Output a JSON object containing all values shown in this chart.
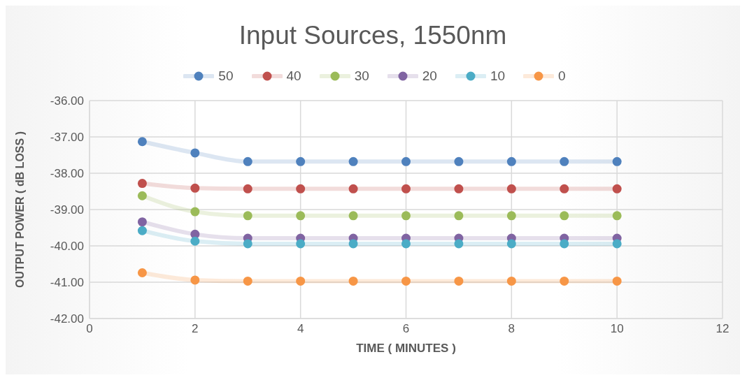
{
  "chart_data": {
    "type": "line",
    "title": "Input Sources, 1550nm",
    "xlabel": "TIME ( MINUTES )",
    "ylabel": "OUTPUT POWER ( dB LOSS )",
    "x": [
      1,
      2,
      3,
      4,
      5,
      6,
      7,
      8,
      9,
      10
    ],
    "series": [
      {
        "name": "50",
        "color": "#4f81bd",
        "values": [
          -37.13,
          -37.44,
          -37.68,
          -37.68,
          -37.68,
          -37.68,
          -37.68,
          -37.68,
          -37.68,
          -37.68
        ]
      },
      {
        "name": "40",
        "color": "#c0504d",
        "values": [
          -38.28,
          -38.41,
          -38.43,
          -38.43,
          -38.43,
          -38.43,
          -38.43,
          -38.43,
          -38.43,
          -38.43
        ]
      },
      {
        "name": "30",
        "color": "#9bbb59",
        "values": [
          -38.62,
          -39.06,
          -39.17,
          -39.17,
          -39.17,
          -39.17,
          -39.17,
          -39.17,
          -39.17,
          -39.17
        ]
      },
      {
        "name": "20",
        "color": "#8064a2",
        "values": [
          -39.34,
          -39.68,
          -39.79,
          -39.79,
          -39.79,
          -39.79,
          -39.79,
          -39.79,
          -39.79,
          -39.79
        ]
      },
      {
        "name": "10",
        "color": "#4bacc6",
        "values": [
          -39.58,
          -39.87,
          -39.94,
          -39.94,
          -39.94,
          -39.94,
          -39.94,
          -39.94,
          -39.94,
          -39.94
        ]
      },
      {
        "name": "0",
        "color": "#f79646",
        "values": [
          -40.74,
          -40.94,
          -40.97,
          -40.97,
          -40.97,
          -40.97,
          -40.97,
          -40.97,
          -40.97,
          -40.97
        ]
      }
    ],
    "xlim": [
      0,
      12
    ],
    "xticks": [
      0,
      2,
      4,
      6,
      8,
      10,
      12
    ],
    "ylim": [
      -42,
      -36
    ],
    "yticks": [
      {
        "value": -42,
        "label": "-42.00"
      },
      {
        "value": -41,
        "label": "-41.00"
      },
      {
        "value": -40,
        "label": "-40.00"
      },
      {
        "value": -39,
        "label": "-39.00"
      },
      {
        "value": -38,
        "label": "-38.00"
      },
      {
        "value": -37,
        "label": "-37.00"
      },
      {
        "value": -36,
        "label": "-36.00"
      }
    ],
    "grid": true,
    "legend": "top",
    "marker": "circle",
    "line_style": "solid"
  }
}
